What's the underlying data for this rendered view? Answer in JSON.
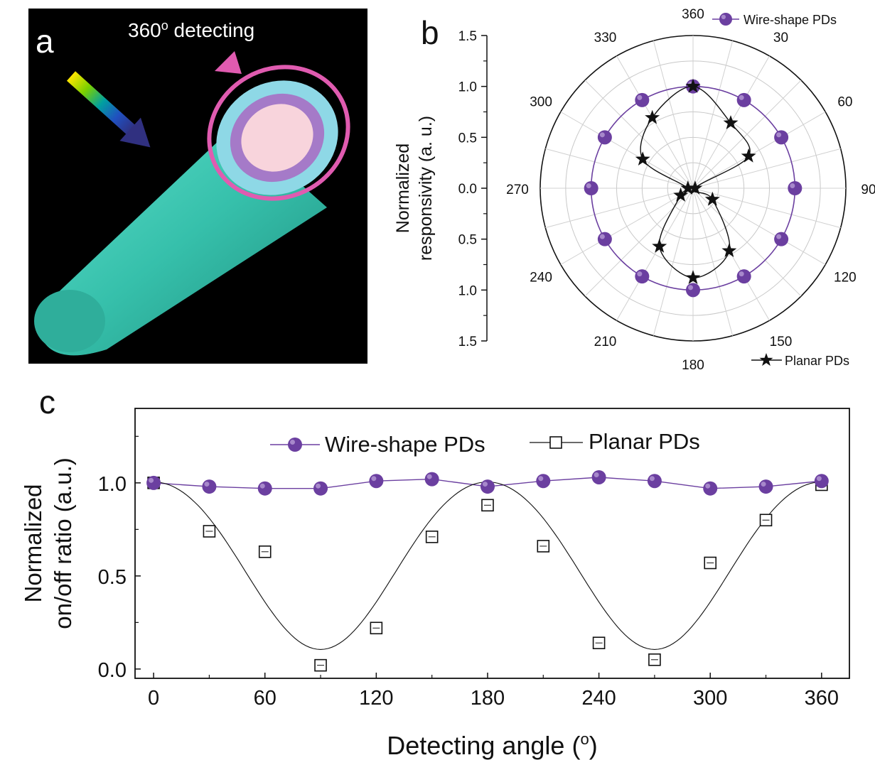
{
  "panel_a": {
    "letter": "a",
    "caption_main": "360",
    "caption_sup": "o",
    "caption_rest": " detecting",
    "colors": {
      "fiber": "#3cc8b4",
      "ring": "#e05bb0",
      "shell": "#8ed8e6",
      "layer": "#a57ac8",
      "core": "#f8d4dc"
    }
  },
  "chart_data": [
    {
      "type": "polar",
      "panel": "b",
      "ylabel": [
        "Normalized",
        "responsivity (a. u.)"
      ],
      "radial_ticks": [
        "1.5",
        "1.0",
        "0.5",
        "0.0",
        "0.5",
        "1.0",
        "1.5"
      ],
      "radial_max": 1.5,
      "angle_labels": [
        "360",
        "30",
        "60",
        "90",
        "120",
        "150",
        "180",
        "210",
        "240",
        "270",
        "300",
        "330"
      ],
      "series": [
        {
          "name": "Wire-shape PDs",
          "marker": "circle",
          "color": "#6b3fa0",
          "angles": [
            0,
            30,
            60,
            90,
            120,
            150,
            180,
            210,
            240,
            270,
            300,
            330
          ],
          "values": [
            1.0,
            1.0,
            1.0,
            1.0,
            1.0,
            1.0,
            1.0,
            1.0,
            1.0,
            1.0,
            1.0,
            1.0
          ]
        },
        {
          "name": "Planar PDs",
          "marker": "star",
          "color": "#111111",
          "angles": [
            0,
            30,
            60,
            90,
            120,
            150,
            180,
            210,
            240,
            270,
            300,
            330
          ],
          "values": [
            1.0,
            0.74,
            0.63,
            0.02,
            0.22,
            0.71,
            0.88,
            0.66,
            0.14,
            0.05,
            0.57,
            0.8
          ]
        }
      ]
    },
    {
      "type": "line",
      "panel": "c",
      "xlabel": "Detecting angle (",
      "xlabel_sup": "o",
      "xlabel_end": ")",
      "ylabel": [
        "Normalized",
        "on/off ratio (a.u.)"
      ],
      "xlim": [
        -10,
        375
      ],
      "ylim": [
        -0.05,
        1.4
      ],
      "xticks": [
        "0",
        "60",
        "120",
        "180",
        "240",
        "300",
        "360"
      ],
      "yticks": [
        "0.0",
        "0.5",
        "1.0"
      ],
      "series": [
        {
          "name": "Wire-shape PDs",
          "marker": "circle",
          "color": "#6b3fa0",
          "x": [
            0,
            30,
            60,
            90,
            120,
            150,
            180,
            210,
            240,
            270,
            300,
            330,
            360
          ],
          "y": [
            1.0,
            0.98,
            0.97,
            0.97,
            1.01,
            1.02,
            0.98,
            1.01,
            1.03,
            1.01,
            0.97,
            0.98,
            1.01
          ]
        },
        {
          "name": "Planar PDs",
          "marker": "open-square",
          "color": "#111111",
          "x": [
            0,
            30,
            60,
            90,
            120,
            150,
            180,
            210,
            240,
            270,
            300,
            330,
            360
          ],
          "y": [
            1.0,
            0.74,
            0.63,
            0.02,
            0.22,
            0.71,
            0.88,
            0.66,
            0.14,
            0.05,
            0.57,
            0.8,
            0.99
          ]
        }
      ]
    }
  ]
}
